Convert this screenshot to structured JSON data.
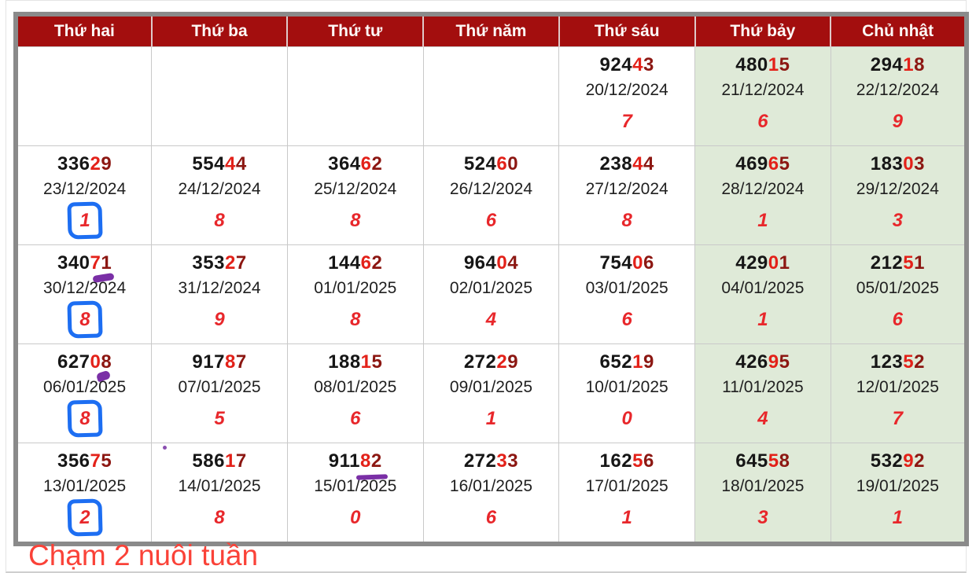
{
  "table": {
    "days": [
      "Thứ hai",
      "Thứ ba",
      "Thứ tư",
      "Thứ năm",
      "Thứ sáu",
      "Thứ bảy",
      "Chủ nhật"
    ],
    "weeks": [
      [
        null,
        null,
        null,
        null,
        {
          "prefix": "924",
          "digit4": "4",
          "digit5": "3",
          "date": "20/12/2024",
          "touch": "7"
        },
        {
          "prefix": "480",
          "digit4": "1",
          "digit5": "5",
          "date": "21/12/2024",
          "touch": "6"
        },
        {
          "prefix": "294",
          "digit4": "1",
          "digit5": "8",
          "date": "22/12/2024",
          "touch": "9"
        }
      ],
      [
        {
          "prefix": "336",
          "digit4": "2",
          "digit5": "9",
          "date": "23/12/2024",
          "touch": "1",
          "blue_box": true
        },
        {
          "prefix": "554",
          "digit4": "4",
          "digit5": "4",
          "date": "24/12/2024",
          "touch": "8"
        },
        {
          "prefix": "364",
          "digit4": "6",
          "digit5": "2",
          "date": "25/12/2024",
          "touch": "8"
        },
        {
          "prefix": "524",
          "digit4": "6",
          "digit5": "0",
          "date": "26/12/2024",
          "touch": "6"
        },
        {
          "prefix": "238",
          "digit4": "4",
          "digit5": "4",
          "date": "27/12/2024",
          "touch": "8"
        },
        {
          "prefix": "469",
          "digit4": "6",
          "digit5": "5",
          "date": "28/12/2024",
          "touch": "1"
        },
        {
          "prefix": "183",
          "digit4": "0",
          "digit5": "3",
          "date": "29/12/2024",
          "touch": "3"
        }
      ],
      [
        {
          "prefix": "340",
          "digit4": "7",
          "digit5": "1",
          "date": "30/12/2024",
          "touch": "8",
          "blue_box": true,
          "mark": "purple-blob-wide"
        },
        {
          "prefix": "353",
          "digit4": "2",
          "digit5": "7",
          "date": "31/12/2024",
          "touch": "9"
        },
        {
          "prefix": "144",
          "digit4": "6",
          "digit5": "2",
          "date": "01/01/2025",
          "touch": "8"
        },
        {
          "prefix": "964",
          "digit4": "0",
          "digit5": "4",
          "date": "02/01/2025",
          "touch": "4"
        },
        {
          "prefix": "754",
          "digit4": "0",
          "digit5": "6",
          "date": "03/01/2025",
          "touch": "6"
        },
        {
          "prefix": "429",
          "digit4": "0",
          "digit5": "1",
          "date": "04/01/2025",
          "touch": "1"
        },
        {
          "prefix": "212",
          "digit4": "5",
          "digit5": "1",
          "date": "05/01/2025",
          "touch": "6"
        }
      ],
      [
        {
          "prefix": "627",
          "digit4": "0",
          "digit5": "8",
          "date": "06/01/2025",
          "touch": "8",
          "blue_box": true,
          "mark": "purple-blob-small"
        },
        {
          "prefix": "917",
          "digit4": "8",
          "digit5": "7",
          "date": "07/01/2025",
          "touch": "5"
        },
        {
          "prefix": "188",
          "digit4": "1",
          "digit5": "5",
          "date": "08/01/2025",
          "touch": "6"
        },
        {
          "prefix": "272",
          "digit4": "2",
          "digit5": "9",
          "date": "09/01/2025",
          "touch": "1"
        },
        {
          "prefix": "652",
          "digit4": "1",
          "digit5": "9",
          "date": "10/01/2025",
          "touch": "0"
        },
        {
          "prefix": "426",
          "digit4": "9",
          "digit5": "5",
          "date": "11/01/2025",
          "touch": "4"
        },
        {
          "prefix": "123",
          "digit4": "5",
          "digit5": "2",
          "date": "12/01/2025",
          "touch": "7"
        }
      ],
      [
        {
          "prefix": "356",
          "digit4": "7",
          "digit5": "5",
          "date": "13/01/2025",
          "touch": "2",
          "blue_box": true
        },
        {
          "prefix": "586",
          "digit4": "1",
          "digit5": "7",
          "date": "14/01/2025",
          "touch": "8",
          "mark": "purple-dot"
        },
        {
          "prefix": "911",
          "digit4": "8",
          "digit5": "2",
          "date": "15/01/2025",
          "touch": "0",
          "mark": "purple-underline"
        },
        {
          "prefix": "272",
          "digit4": "3",
          "digit5": "3",
          "date": "16/01/2025",
          "touch": "6"
        },
        {
          "prefix": "162",
          "digit4": "5",
          "digit5": "6",
          "date": "17/01/2025",
          "touch": "1"
        },
        {
          "prefix": "645",
          "digit4": "5",
          "digit5": "8",
          "date": "18/01/2025",
          "touch": "3"
        },
        {
          "prefix": "532",
          "digit4": "9",
          "digit5": "2",
          "date": "19/01/2025",
          "touch": "1"
        }
      ]
    ]
  },
  "footer": {
    "caption": "Chạm 2 nuôi tuần"
  },
  "colors": {
    "header_bg": "#A30E0E",
    "digit_red": "#E32119",
    "digit_maroon": "#8C1712",
    "touch_red": "#E8272B",
    "weekend_bg": "#DFEAD8",
    "annotation_blue": "#1D6EF2",
    "annotation_purple": "#7A2FA6",
    "footer_red": "#FA4238",
    "frame_gray": "#8A8A8A"
  }
}
